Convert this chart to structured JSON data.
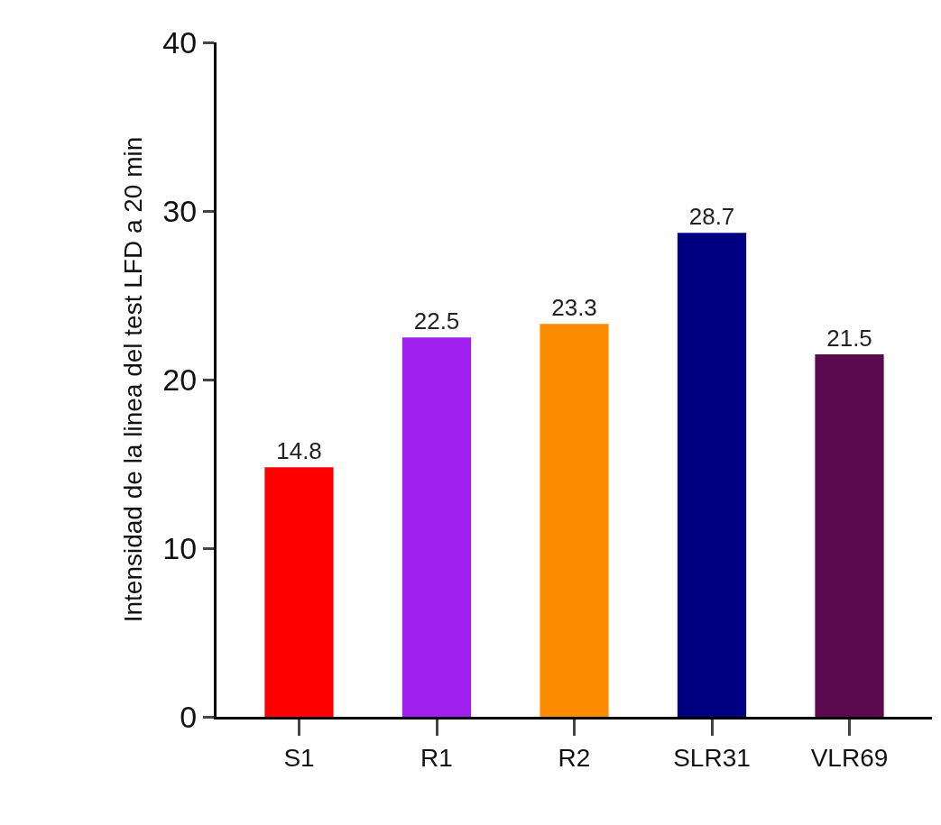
{
  "chart_data": {
    "type": "bar",
    "ylabel": "Intensidad de la linea del test LFD a 20 min",
    "categories": [
      "S1",
      "R1",
      "R2",
      "SLR31",
      "VLR69"
    ],
    "values": [
      14.8,
      22.5,
      23.3,
      28.7,
      21.5
    ],
    "colors": [
      "#ff0000",
      "#a020f0",
      "#ff8c00",
      "#000080",
      "#5c0a4f"
    ],
    "ylim": [
      0,
      40
    ],
    "yticks": [
      0,
      10,
      20,
      30,
      40
    ],
    "data_labels": true
  }
}
